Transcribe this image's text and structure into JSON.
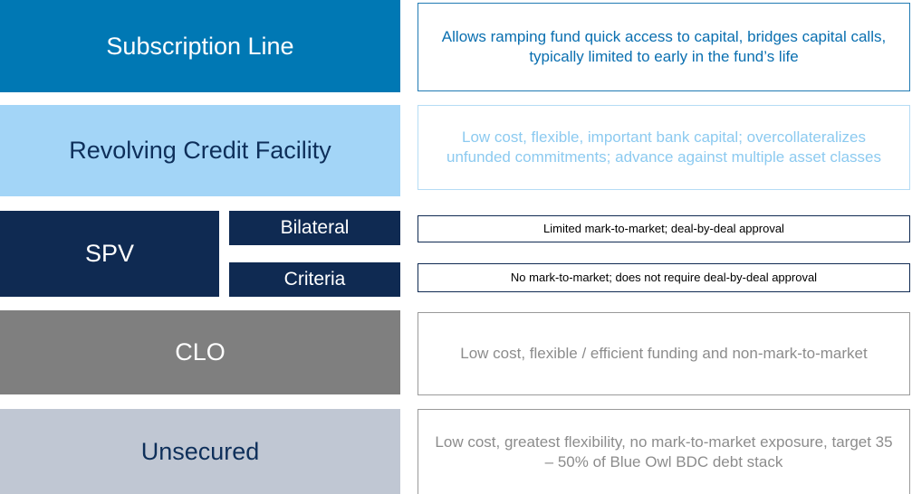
{
  "rows": [
    {
      "label": "Subscription Line",
      "description": "Allows ramping fund quick access to capital, bridges capital calls, typically limited to early in the fund’s life"
    },
    {
      "label": "Revolving Credit  Facility",
      "description": "Low cost, flexible, important bank capital; overcollateralizes unfunded commitments; advance against multiple asset classes"
    },
    {
      "label": "SPV",
      "subrows": [
        {
          "label": "Bilateral",
          "description": "Limited mark-to-market; deal-by-deal approval"
        },
        {
          "label": "Criteria",
          "description": "No mark-to-market; does not require deal-by-deal approval"
        }
      ]
    },
    {
      "label": "CLO",
      "description": "Low cost, flexible / efficient funding and non-mark-to-market"
    },
    {
      "label": "Unsecured",
      "description": "Low cost, greatest flexibility, no mark-to-market exposure, target 35 – 50% of Blue Owl BDC debt stack"
    }
  ]
}
